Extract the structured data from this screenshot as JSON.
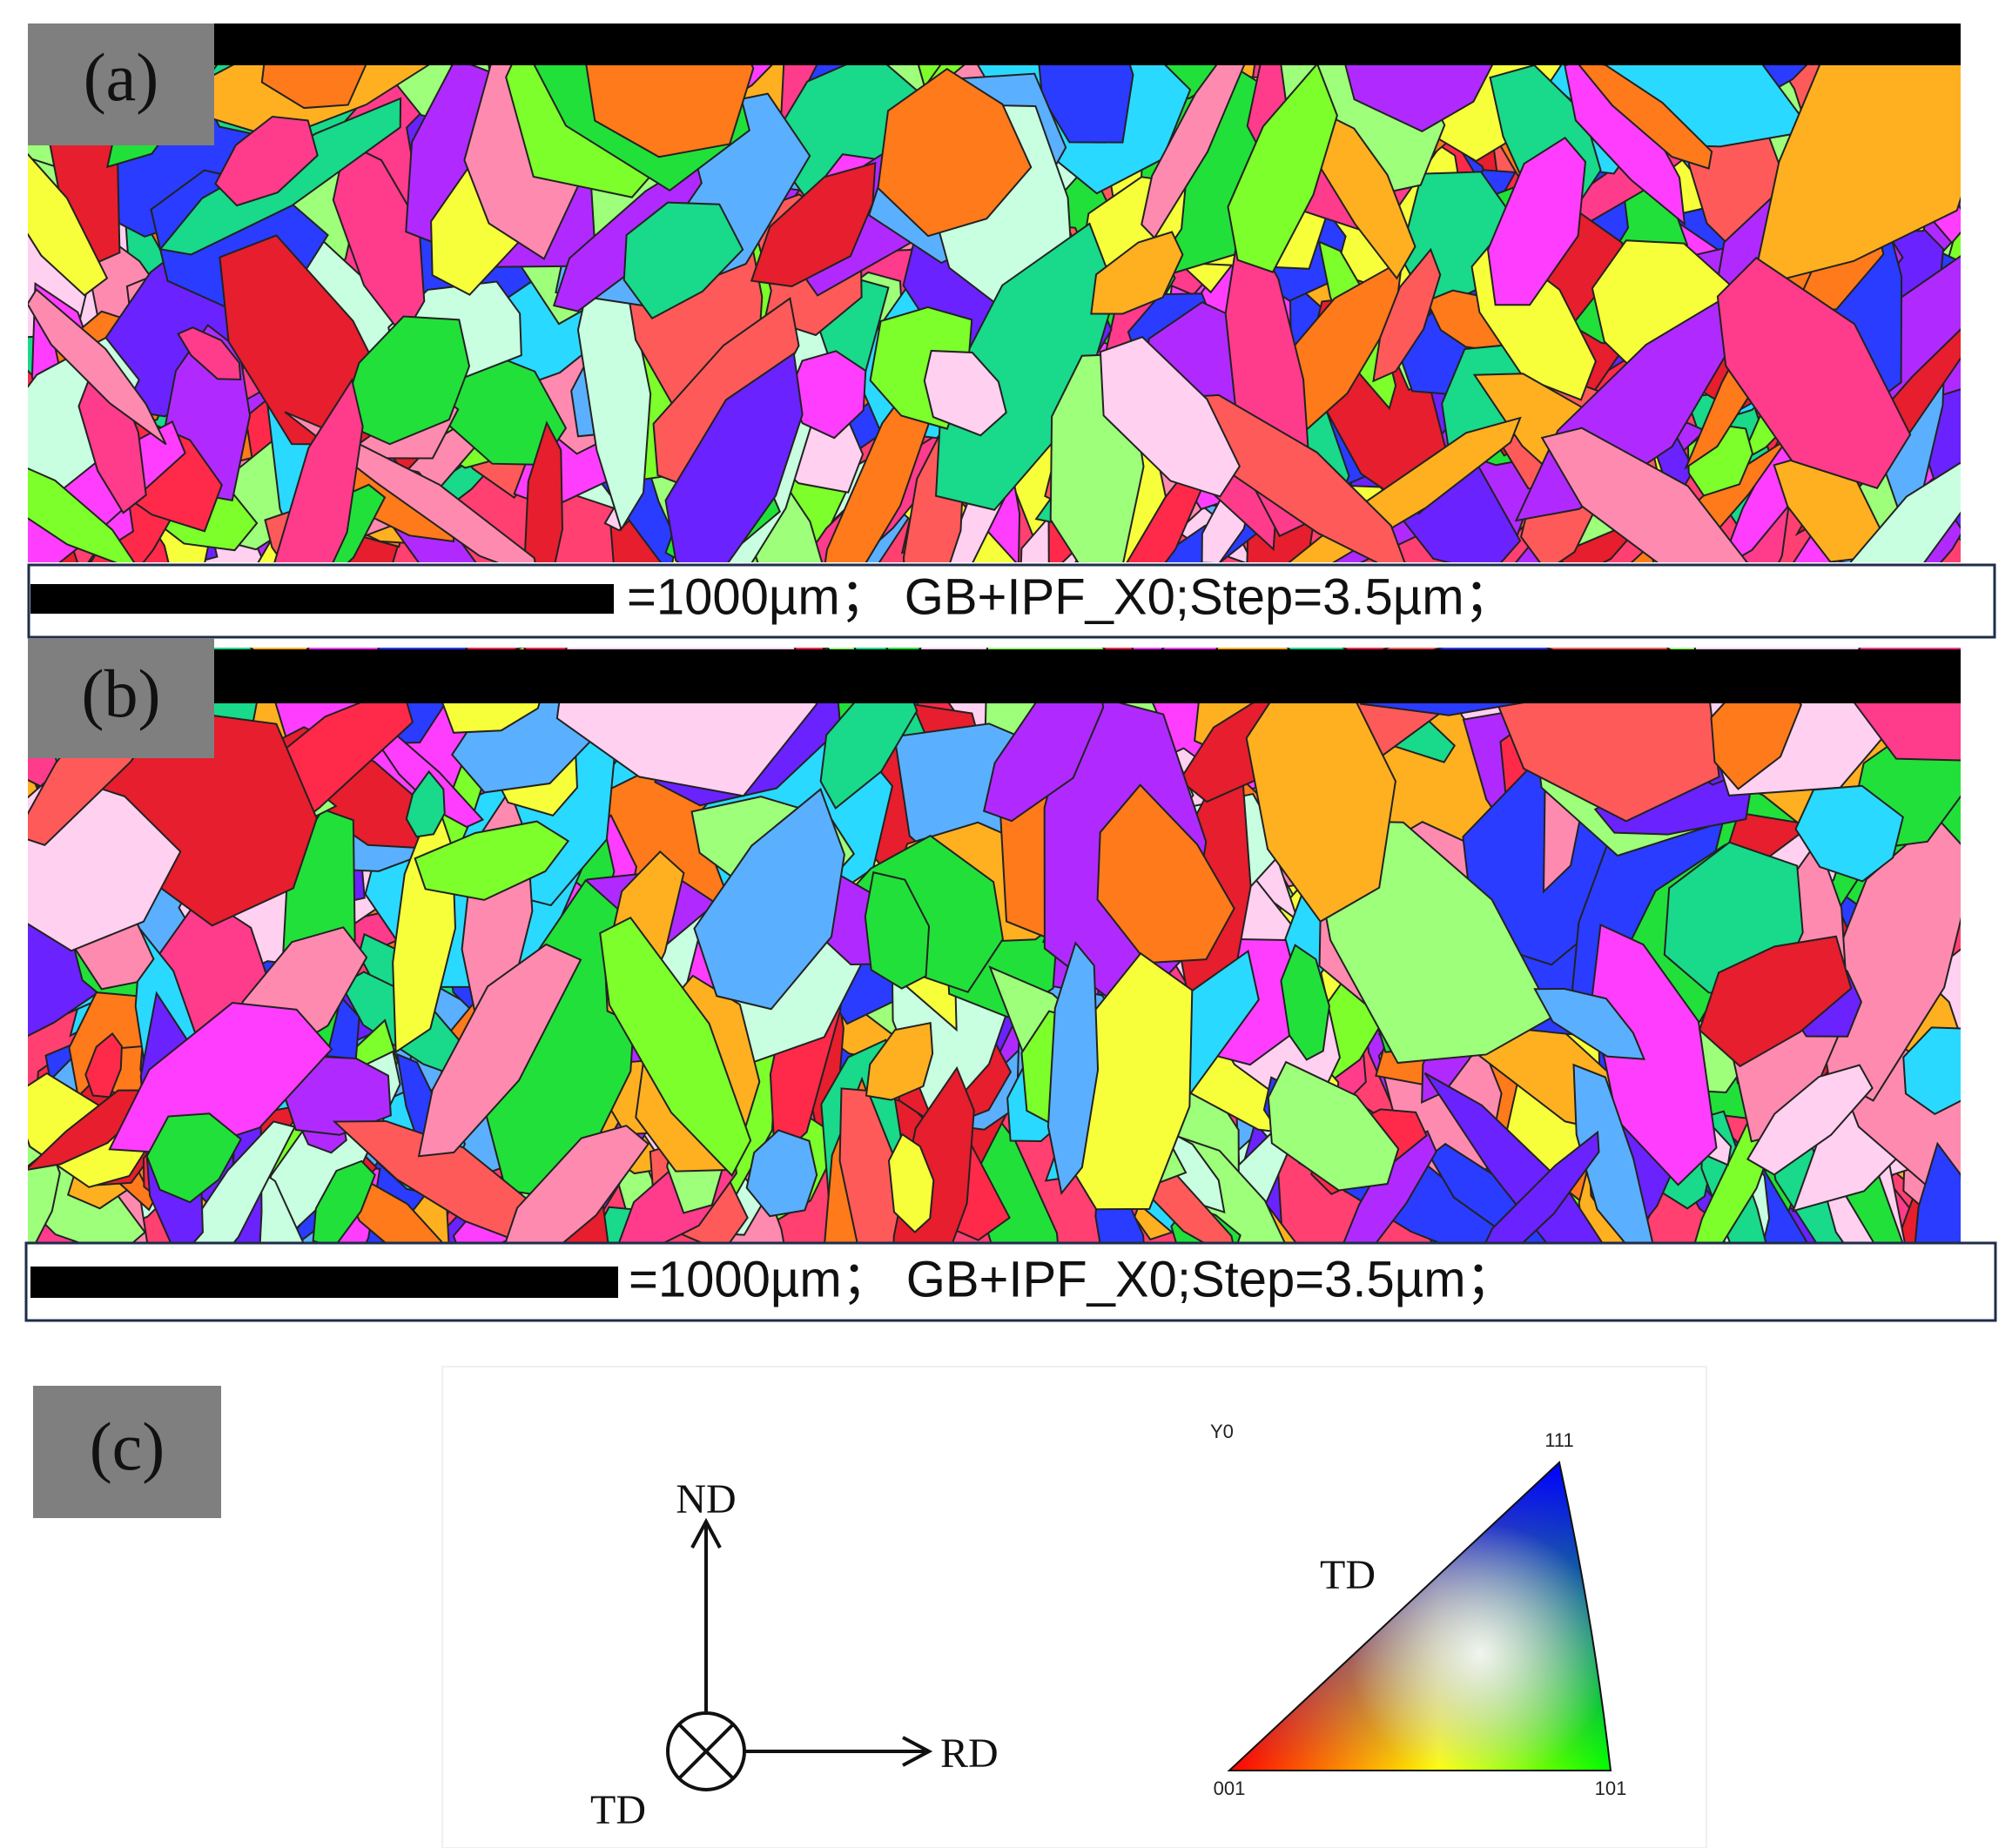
{
  "panels": [
    {
      "label": "(a)",
      "scale_text": "=1000µm；  GB+IPF_X0;Step=3.5µm；"
    },
    {
      "label": "(b)",
      "scale_text": "=1000µm；  GB+IPF_X0;Step=3.5µm；"
    }
  ],
  "legend": {
    "label": "(c)",
    "axes": {
      "nd": "ND",
      "rd": "RD",
      "td": "TD"
    },
    "ipf": {
      "direction": "Y0",
      "td": "TD",
      "corner_111": "111",
      "corner_001": "001",
      "corner_101": "101"
    }
  }
}
